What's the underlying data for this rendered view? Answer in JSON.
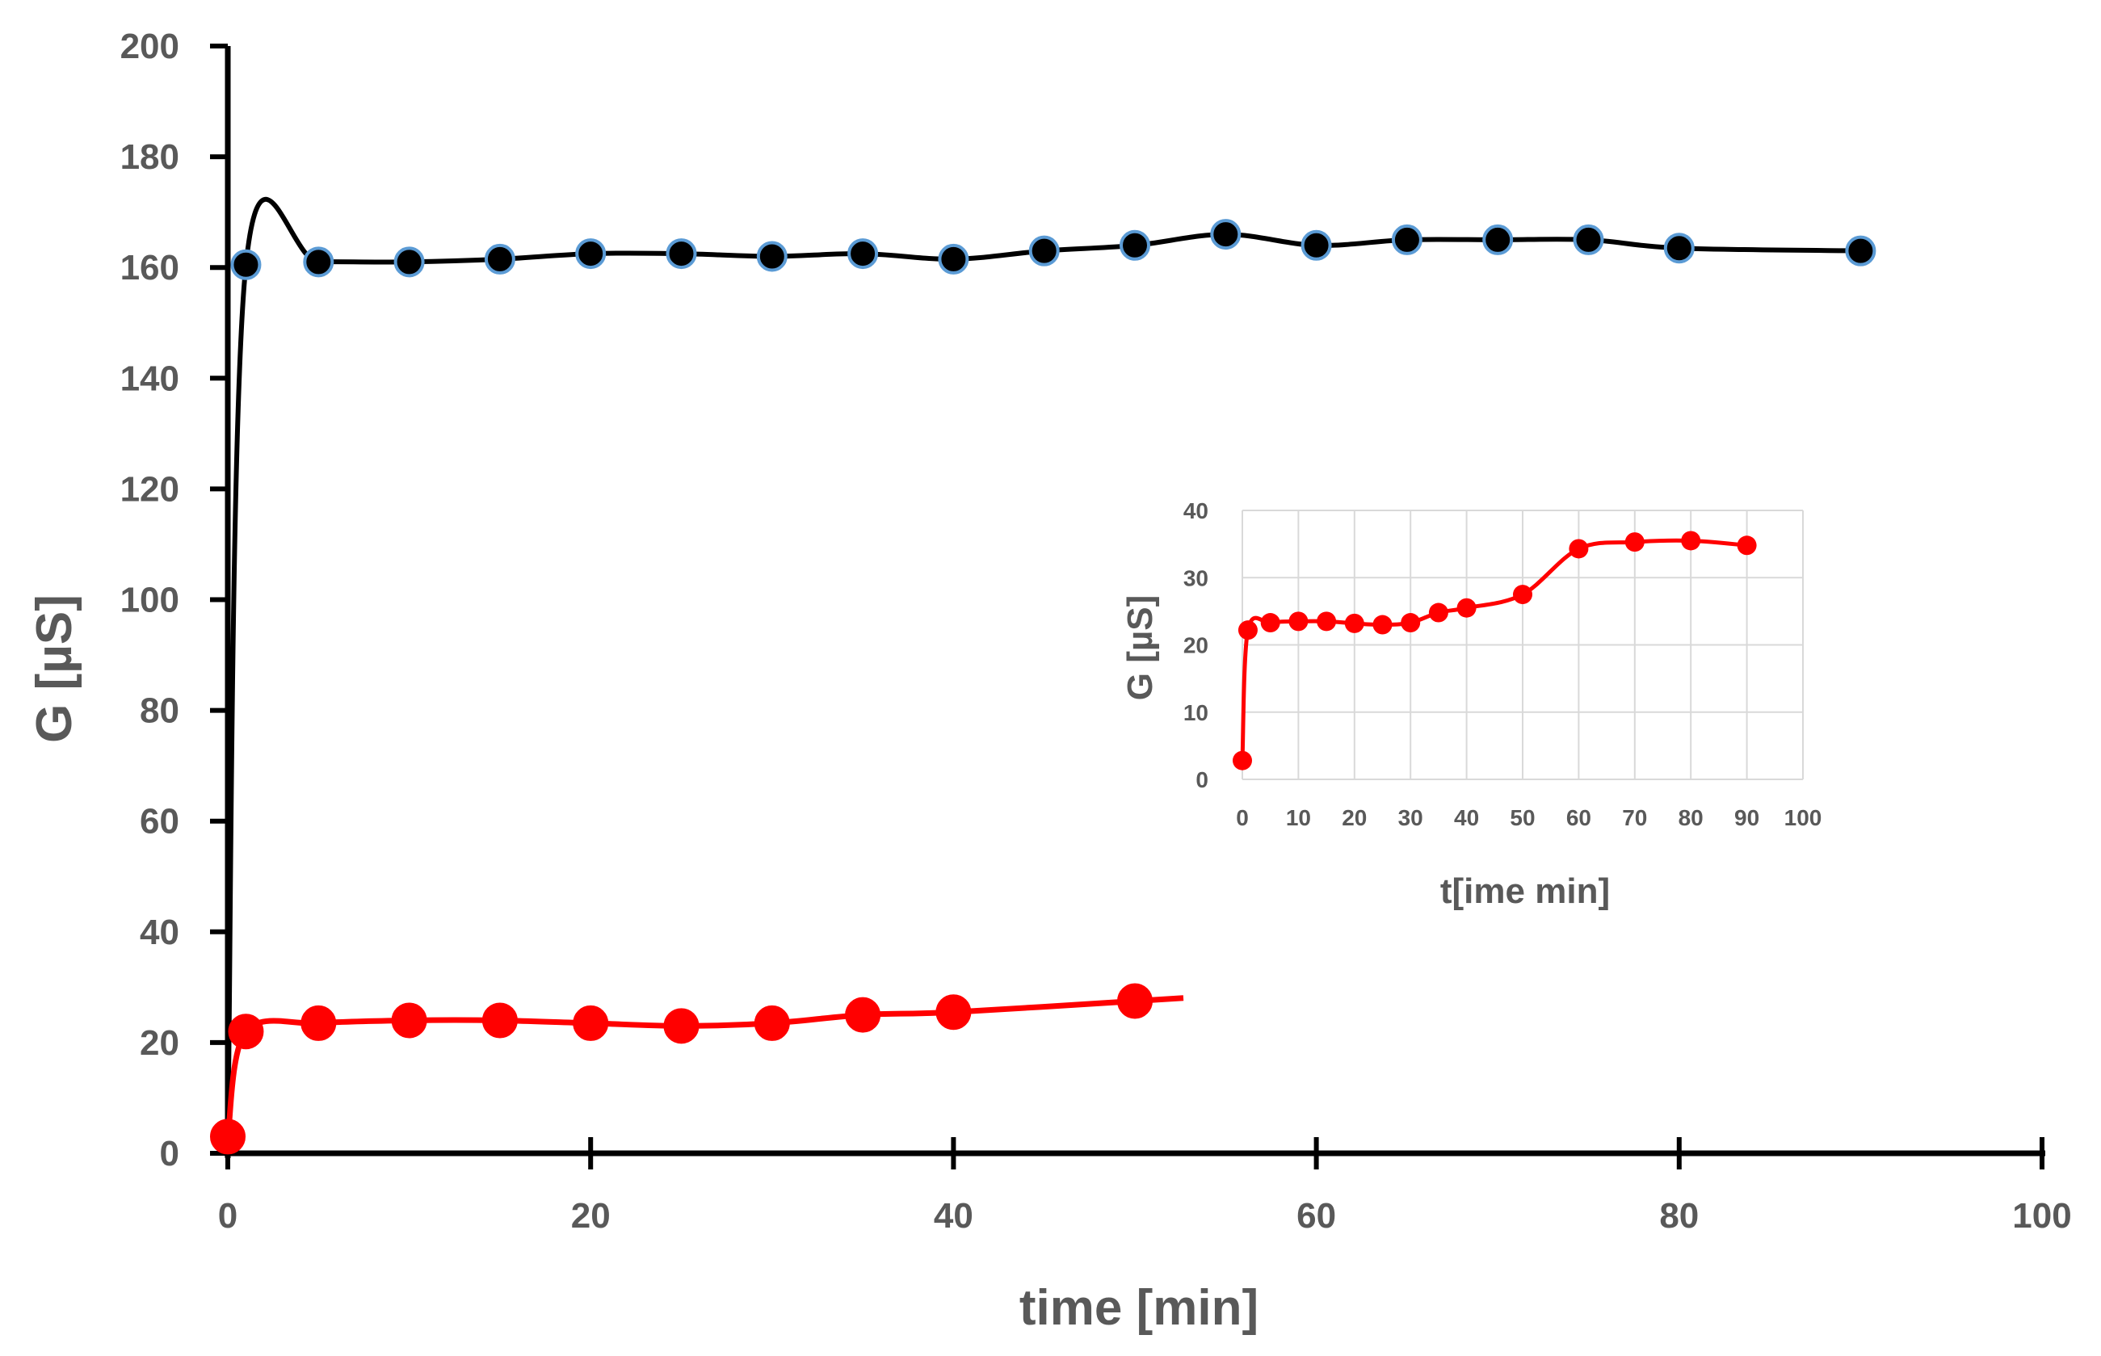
{
  "chart_data": [
    {
      "type": "line",
      "xlabel": "time [min]",
      "ylabel": "G [µS]",
      "xlim": [
        0,
        100
      ],
      "ylim": [
        0,
        200
      ],
      "x_ticks": [
        "0",
        "20",
        "40",
        "60",
        "80",
        "100"
      ],
      "y_ticks": [
        "0",
        "20",
        "40",
        "60",
        "80",
        "100",
        "120",
        "140",
        "160",
        "180",
        "200"
      ],
      "grid": false,
      "series": [
        {
          "name": "black series",
          "color": "#000000",
          "marker_edge_color": "#5b9bd5",
          "x": [
            0,
            1,
            5,
            10,
            15,
            20,
            25,
            30,
            35,
            40,
            45,
            50,
            55,
            60,
            65,
            70,
            75,
            80,
            90
          ],
          "y": [
            3,
            160.5,
            161,
            161,
            161.5,
            162.5,
            162.5,
            162,
            162.5,
            161.5,
            163,
            164,
            166,
            164,
            165,
            165,
            165,
            163.5,
            163
          ]
        },
        {
          "name": "red series",
          "color": "#ff0000",
          "x": [
            0,
            1,
            5,
            10,
            15,
            20,
            25,
            30,
            35,
            40,
            50
          ],
          "y": [
            3,
            22,
            23.5,
            24,
            24,
            23.5,
            23,
            23.5,
            25,
            25.5,
            27.5
          ]
        }
      ]
    },
    {
      "type": "line",
      "xlabel": "t[ime min]",
      "ylabel": "G [µS]",
      "xlim": [
        0,
        100
      ],
      "ylim": [
        0,
        40
      ],
      "x_ticks": [
        "0",
        "10",
        "20",
        "30",
        "40",
        "50",
        "60",
        "70",
        "80",
        "90",
        "100"
      ],
      "y_ticks": [
        "0",
        "10",
        "20",
        "30",
        "40"
      ],
      "grid": true,
      "series": [
        {
          "name": "red series inset",
          "color": "#ff0000",
          "x": [
            0,
            1,
            5,
            10,
            15,
            20,
            25,
            30,
            35,
            40,
            50,
            60,
            70,
            80,
            90
          ],
          "y": [
            2.8,
            22.2,
            23.3,
            23.5,
            23.5,
            23.2,
            23,
            23.3,
            24.8,
            25.5,
            27.5,
            34.3,
            35.3,
            35.5,
            34.8
          ]
        }
      ]
    }
  ]
}
